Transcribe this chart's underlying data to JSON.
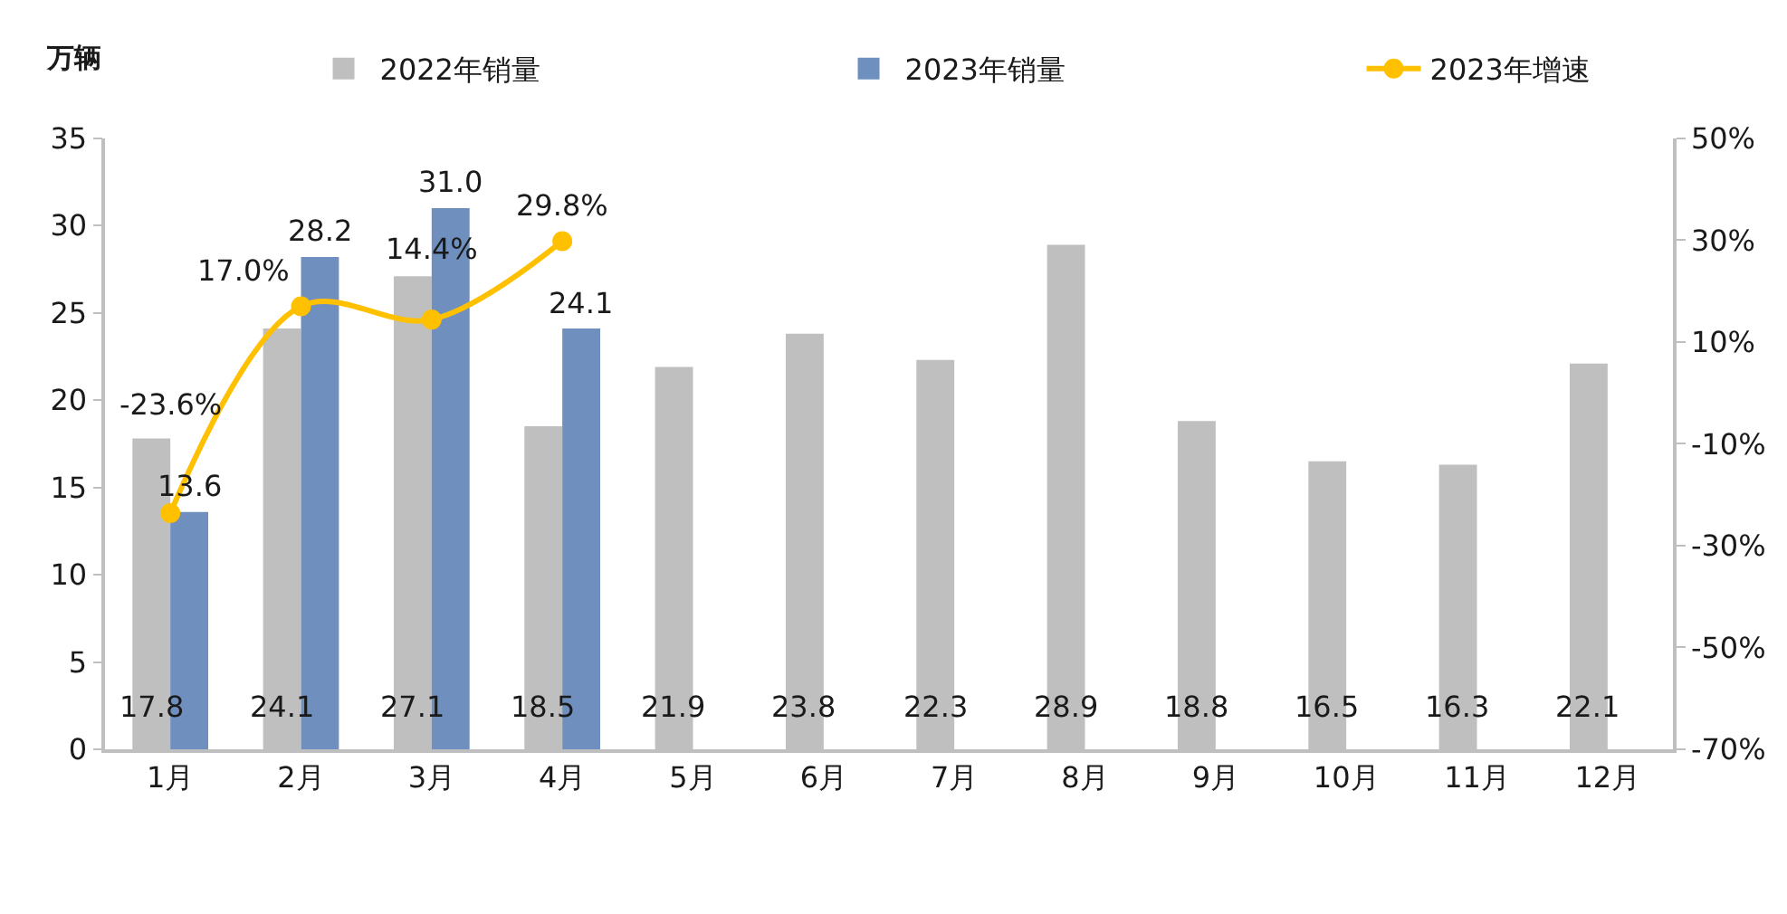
{
  "chart_data": {
    "type": "bar",
    "ylabel": "万辆",
    "categories": [
      "1月",
      "2月",
      "3月",
      "4月",
      "5月",
      "6月",
      "7月",
      "8月",
      "9月",
      "10月",
      "11月",
      "12月"
    ],
    "series": [
      {
        "name": "2022年销量",
        "color": "#bfbfbf",
        "values": [
          17.8,
          24.1,
          27.1,
          18.5,
          21.9,
          23.8,
          22.3,
          28.9,
          18.8,
          16.5,
          16.3,
          22.1
        ],
        "value_labels": [
          "17.8",
          "24.1",
          "27.1",
          "18.5",
          "21.9",
          "23.8",
          "22.3",
          "28.9",
          "18.8",
          "16.5",
          "16.3",
          "22.1"
        ]
      },
      {
        "name": "2023年销量",
        "color": "#6f8fbe",
        "values": [
          13.6,
          28.2,
          31.0,
          24.1,
          null,
          null,
          null,
          null,
          null,
          null,
          null,
          null
        ],
        "value_labels": [
          "13.6",
          "28.2",
          "31.0",
          "24.1",
          null,
          null,
          null,
          null,
          null,
          null,
          null,
          null
        ]
      },
      {
        "name": "2023年增速",
        "type": "line",
        "axis": "y2",
        "color": "#ffc000",
        "values": [
          -23.6,
          17.0,
          14.4,
          29.8,
          null,
          null,
          null,
          null,
          null,
          null,
          null,
          null
        ],
        "value_labels": [
          "-23.6%",
          "17.0%",
          "14.4%",
          "29.8%",
          null,
          null,
          null,
          null,
          null,
          null,
          null,
          null
        ]
      }
    ],
    "ylim": [
      0,
      35
    ],
    "yticks": [
      0,
      5,
      10,
      15,
      20,
      25,
      30,
      35
    ],
    "y2lim": [
      -70,
      50
    ],
    "y2ticks": [
      {
        "value": -70,
        "label": "-70%"
      },
      {
        "value": -50,
        "label": "-50%"
      },
      {
        "value": -30,
        "label": "-30%"
      },
      {
        "value": -10,
        "label": "-10%"
      },
      {
        "value": 10,
        "label": "10%"
      },
      {
        "value": 30,
        "label": "30%"
      },
      {
        "value": 50,
        "label": "50%"
      }
    ],
    "marker": "circle",
    "grid": false,
    "legend": "top"
  }
}
